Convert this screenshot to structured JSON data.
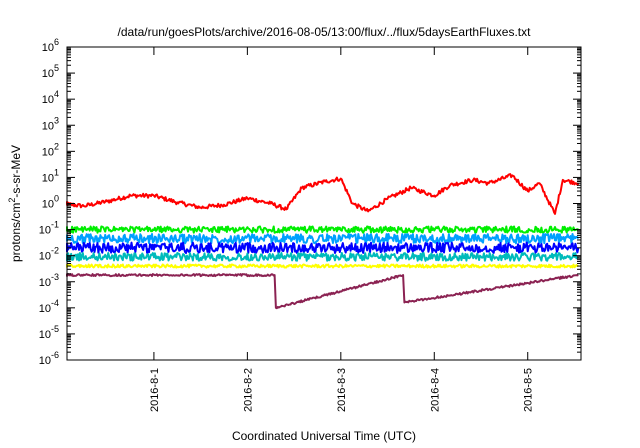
{
  "chart_data": {
    "type": "line",
    "title": "/data/run/goesPlots/archive/2016-08-05/13:00/flux/../flux/5daysEarthFluxes.txt",
    "xlabel": "Coordinated Universal Time (UTC)",
    "ylabel": "protons/cm²-s-sr-MeV",
    "yscale": "log",
    "ylim": [
      1e-06,
      1000000.0
    ],
    "xlim_days": [
      -0.93,
      4.57
    ],
    "x_ticks": [
      {
        "label": "2016-8-1",
        "day": 0
      },
      {
        "label": "2016-8-2",
        "day": 1
      },
      {
        "label": "2016-8-3",
        "day": 2
      },
      {
        "label": "2016-8-4",
        "day": 3
      },
      {
        "label": "2016-8-5",
        "day": 4
      }
    ],
    "y_ticks": [
      {
        "base": "10",
        "exp": "-6",
        "value": -6
      },
      {
        "base": "10",
        "exp": "-5",
        "value": -5
      },
      {
        "base": "10",
        "exp": "-4",
        "value": -4
      },
      {
        "base": "10",
        "exp": "-3",
        "value": -3
      },
      {
        "base": "10",
        "exp": "-2",
        "value": -2
      },
      {
        "base": "10",
        "exp": "-1",
        "value": -1
      },
      {
        "base": "10",
        "exp": "0",
        "value": 0
      },
      {
        "base": "10",
        "exp": "1",
        "value": 1
      },
      {
        "base": "10",
        "exp": "2",
        "value": 2
      },
      {
        "base": "10",
        "exp": "3",
        "value": 3
      },
      {
        "base": "10",
        "exp": "4",
        "value": 4
      },
      {
        "base": "10",
        "exp": "5",
        "value": 5
      },
      {
        "base": "10",
        "exp": "6",
        "value": 6
      }
    ],
    "grid": false,
    "legend": false,
    "series": [
      {
        "color": "#ff0000",
        "width": 2,
        "x": [
          "2016-07-31T00:00",
          "2016-07-31T06:00",
          "2016-07-31T12:00",
          "2016-07-31T18:00",
          "2016-08-01T00:00",
          "2016-08-01T06:00",
          "2016-08-01T12:00",
          "2016-08-01T18:00",
          "2016-08-02T00:00",
          "2016-08-02T06:00",
          "2016-08-02T10:00",
          "2016-08-02T14:00",
          "2016-08-02T20:00",
          "2016-08-03T00:00",
          "2016-08-03T03:00",
          "2016-08-03T07:00",
          "2016-08-03T12:00",
          "2016-08-03T18:00",
          "2016-08-04T00:00",
          "2016-08-04T04:00",
          "2016-08-04T10:00",
          "2016-08-04T14:00",
          "2016-08-04T20:00",
          "2016-08-05T00:00",
          "2016-08-05T03:00",
          "2016-08-05T07:00",
          "2016-08-05T09:00",
          "2016-08-05T13:00"
        ],
        "y": [
          1.0,
          0.8,
          1.2,
          2.0,
          2.0,
          1.1,
          0.7,
          0.9,
          1.6,
          1.0,
          0.6,
          4.0,
          7.0,
          9.0,
          1.0,
          0.5,
          1.5,
          4.0,
          2.0,
          5.0,
          8.0,
          6.0,
          12.0,
          3.0,
          6.0,
          0.4,
          8.0,
          6.0
        ]
      },
      {
        "color": "#00ee00",
        "width": 2,
        "x": [
          "2016-07-31T00:00",
          "2016-08-05T13:00"
        ],
        "y": [
          0.1,
          0.1
        ]
      },
      {
        "color": "#00a0ff",
        "width": 2,
        "x": [
          "2016-07-31T00:00",
          "2016-08-05T13:00"
        ],
        "y": [
          0.045,
          0.045
        ]
      },
      {
        "color": "#0000ff",
        "width": 2,
        "x": [
          "2016-07-31T00:00",
          "2016-08-05T13:00"
        ],
        "y": [
          0.02,
          0.02
        ]
      },
      {
        "color": "#00bbbb",
        "width": 2,
        "x": [
          "2016-07-31T00:00",
          "2016-08-05T13:00"
        ],
        "y": [
          0.009,
          0.009
        ]
      },
      {
        "color": "#ffff00",
        "width": 2,
        "x": [
          "2016-07-31T00:00",
          "2016-08-05T13:00"
        ],
        "y": [
          0.004,
          0.004
        ]
      },
      {
        "color": "#8b2252",
        "width": 2,
        "x": [
          "2016-07-31T00:00",
          "2016-08-02T07:00",
          "2016-08-02T07:20",
          "2016-08-03T16:00",
          "2016-08-03T16:20",
          "2016-08-05T13:00"
        ],
        "y": [
          0.0018,
          0.0018,
          0.0001,
          0.0018,
          0.00016,
          0.0018
        ]
      }
    ]
  }
}
